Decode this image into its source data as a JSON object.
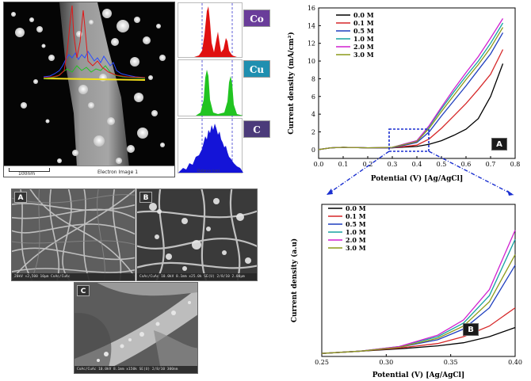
{
  "stem": {
    "scale_label": "100nm",
    "image_label": "Electron Image 1"
  },
  "eds": {
    "labels": [
      "Co",
      "Cu",
      "C"
    ],
    "colors": [
      "#6a3d9a",
      "#1f8fb0",
      "#4b3b7a"
    ],
    "axis_label": "Distance (nm)"
  },
  "sem": {
    "panels": [
      {
        "label": "A",
        "info": "20kV   ×2,500   10µm   CoAc/CuAc"
      },
      {
        "label": "B",
        "info": "CoAc/CuAc 10.0kV 8.1mm x25.0k SE(U) 2/8/10          2.00µm"
      },
      {
        "label": "C",
        "info": "CoAc/CuAc 10.0kV 8.1mm x150k SE(U) 2/8/10                300nm"
      }
    ]
  },
  "chart_data": [
    {
      "type": "line",
      "panel_label": "A",
      "xlabel": "Potential (V) [Ag/AgCl]",
      "ylabel": "Current density (mA/cm²)",
      "xlim": [
        0.0,
        0.8
      ],
      "ylim": [
        -1,
        16
      ],
      "xticks": [
        "0.0",
        "0.1",
        "0.2",
        "0.3",
        "0.4",
        "0.5",
        "0.6",
        "0.7",
        "0.8"
      ],
      "yticks": [
        "0",
        "2",
        "4",
        "6",
        "8",
        "10",
        "12",
        "14",
        "16"
      ],
      "legend_position": "top-left",
      "series": [
        {
          "name": "0.0 M",
          "color": "#000000",
          "x": [
            0.0,
            0.05,
            0.1,
            0.2,
            0.3,
            0.4,
            0.45,
            0.5,
            0.55,
            0.6,
            0.65,
            0.7,
            0.75
          ],
          "y": [
            0.0,
            0.2,
            0.25,
            0.2,
            0.2,
            0.35,
            0.6,
            1.0,
            1.6,
            2.3,
            3.5,
            6.0,
            9.7
          ]
        },
        {
          "name": "0.1 M",
          "color": "#d62728",
          "x": [
            0.0,
            0.05,
            0.1,
            0.2,
            0.3,
            0.4,
            0.45,
            0.5,
            0.55,
            0.6,
            0.65,
            0.7,
            0.75
          ],
          "y": [
            0.0,
            0.2,
            0.25,
            0.2,
            0.2,
            0.5,
            1.2,
            2.4,
            3.8,
            5.2,
            6.8,
            8.5,
            11.3
          ]
        },
        {
          "name": "0.5 M",
          "color": "#1f3fbf",
          "x": [
            0.0,
            0.05,
            0.1,
            0.2,
            0.3,
            0.4,
            0.45,
            0.5,
            0.55,
            0.6,
            0.65,
            0.7,
            0.75
          ],
          "y": [
            0.0,
            0.2,
            0.25,
            0.2,
            0.2,
            0.8,
            2.0,
            3.8,
            5.5,
            7.2,
            9.0,
            10.8,
            13.2
          ]
        },
        {
          "name": "1.0 M",
          "color": "#17a2a2",
          "x": [
            0.0,
            0.05,
            0.1,
            0.2,
            0.3,
            0.4,
            0.45,
            0.5,
            0.55,
            0.6,
            0.65,
            0.7,
            0.75
          ],
          "y": [
            0.0,
            0.2,
            0.25,
            0.2,
            0.25,
            1.0,
            2.6,
            4.6,
            6.5,
            8.3,
            10.0,
            12.0,
            14.3
          ]
        },
        {
          "name": "2.0 M",
          "color": "#d020d0",
          "x": [
            0.0,
            0.05,
            0.1,
            0.2,
            0.3,
            0.4,
            0.45,
            0.5,
            0.55,
            0.6,
            0.65,
            0.7,
            0.75
          ],
          "y": [
            0.0,
            0.2,
            0.25,
            0.2,
            0.25,
            1.0,
            2.7,
            4.8,
            6.8,
            8.7,
            10.5,
            12.6,
            14.8
          ]
        },
        {
          "name": "3.0 M",
          "color": "#8c9a1a",
          "x": [
            0.0,
            0.05,
            0.1,
            0.2,
            0.3,
            0.4,
            0.45,
            0.5,
            0.55,
            0.6,
            0.65,
            0.7,
            0.75
          ],
          "y": [
            0.0,
            0.2,
            0.25,
            0.2,
            0.25,
            0.9,
            2.4,
            4.3,
            6.1,
            7.9,
            9.6,
            11.5,
            13.8
          ]
        }
      ]
    },
    {
      "type": "line",
      "panel_label": "B",
      "xlabel": "Potential (V) [Ag/AgCl]",
      "ylabel": "Current density (a.u)",
      "xlim": [
        0.25,
        0.4
      ],
      "ylim": [
        0,
        1
      ],
      "xticks": [
        "0.25",
        "0.30",
        "0.35",
        "0.40"
      ],
      "yticks": [],
      "legend_position": "top-left",
      "series": [
        {
          "name": "0.0 M",
          "color": "#000000",
          "x": [
            0.25,
            0.28,
            0.31,
            0.34,
            0.36,
            0.38,
            0.4
          ],
          "y": [
            0.02,
            0.035,
            0.05,
            0.07,
            0.09,
            0.13,
            0.19
          ]
        },
        {
          "name": "0.1 M",
          "color": "#d62728",
          "x": [
            0.25,
            0.28,
            0.31,
            0.34,
            0.36,
            0.38,
            0.4
          ],
          "y": [
            0.02,
            0.035,
            0.055,
            0.085,
            0.13,
            0.2,
            0.32
          ]
        },
        {
          "name": "0.5 M",
          "color": "#1f3fbf",
          "x": [
            0.25,
            0.28,
            0.31,
            0.34,
            0.36,
            0.38,
            0.4
          ],
          "y": [
            0.02,
            0.035,
            0.06,
            0.11,
            0.18,
            0.32,
            0.6
          ]
        },
        {
          "name": "1.0 M",
          "color": "#17a2a2",
          "x": [
            0.25,
            0.28,
            0.31,
            0.34,
            0.36,
            0.38,
            0.4
          ],
          "y": [
            0.02,
            0.035,
            0.065,
            0.13,
            0.22,
            0.4,
            0.77
          ]
        },
        {
          "name": "2.0 M",
          "color": "#d020d0",
          "x": [
            0.25,
            0.28,
            0.31,
            0.34,
            0.36,
            0.38,
            0.4
          ],
          "y": [
            0.02,
            0.035,
            0.065,
            0.14,
            0.24,
            0.44,
            0.83
          ]
        },
        {
          "name": "3.0 M",
          "color": "#8c9a1a",
          "x": [
            0.25,
            0.28,
            0.31,
            0.34,
            0.36,
            0.38,
            0.4
          ],
          "y": [
            0.02,
            0.035,
            0.06,
            0.12,
            0.2,
            0.36,
            0.67
          ]
        }
      ]
    }
  ]
}
